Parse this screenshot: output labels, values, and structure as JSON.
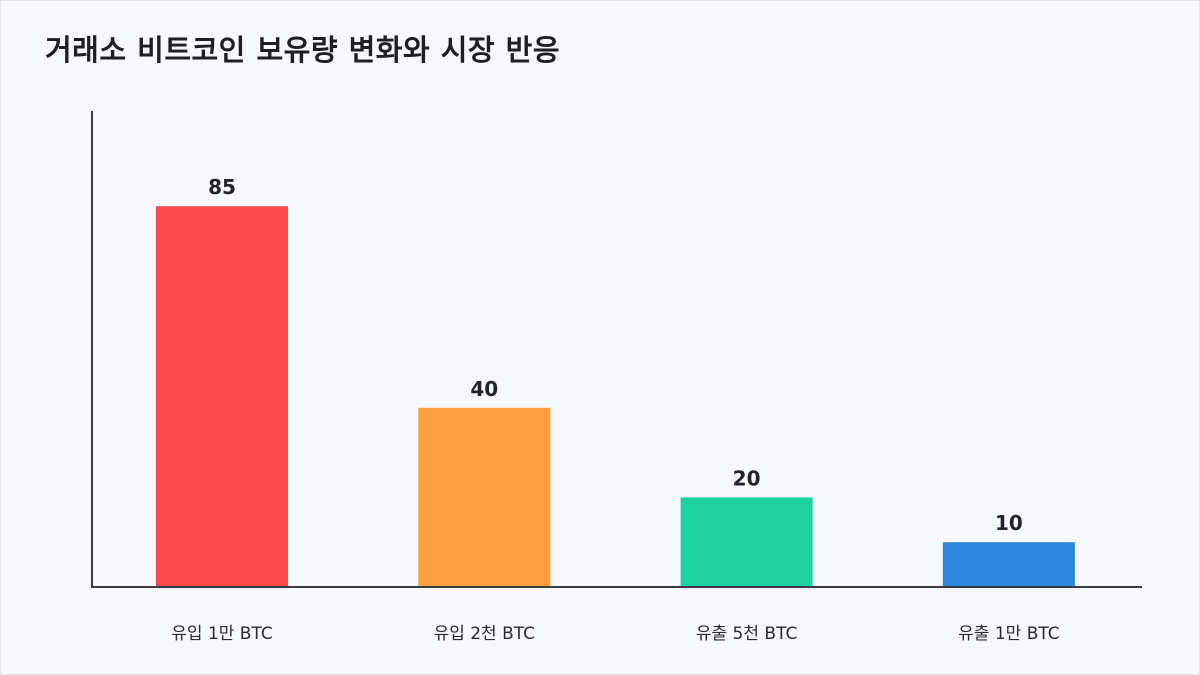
{
  "title": "거래소 비트코인 보유량 변화와 시장 반응",
  "chart_data": {
    "type": "bar",
    "title": "거래소 비트코인 보유량 변화와 시장 반응",
    "categories": [
      "유입 1만 BTC",
      "유입 2천 BTC",
      "유출 5천 BTC",
      "유출 1만 BTC"
    ],
    "values": [
      85,
      40,
      20,
      10
    ],
    "value_labels": [
      "85",
      "40",
      "20",
      "10"
    ],
    "colors": [
      "#ff4b4b",
      "#ffa040",
      "#1dd1a1",
      "#2e86de"
    ],
    "ylim": [
      0,
      100
    ],
    "xlabel": "",
    "ylabel": "",
    "grid": false,
    "legend": "none"
  }
}
